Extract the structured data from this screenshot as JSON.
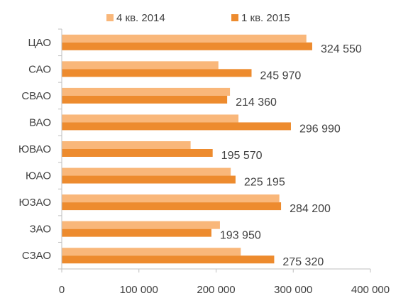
{
  "chart_data": {
    "type": "bar",
    "orientation": "horizontal",
    "categories": [
      "ЦАО",
      "САО",
      "СВАО",
      "ВАО",
      "ЮВАО",
      "ЮАО",
      "ЮЗАО",
      "ЗАО",
      "СЗАО"
    ],
    "series": [
      {
        "name": "4 кв. 2014",
        "color": "#F9B77A",
        "values": [
          317000,
          203000,
          218000,
          229000,
          167000,
          219000,
          282000,
          205000,
          232000
        ]
      },
      {
        "name": "1 кв. 2015",
        "color": "#ED8B2E",
        "values": [
          324550,
          245970,
          214360,
          296990,
          195570,
          225195,
          284200,
          193950,
          275320
        ]
      }
    ],
    "data_labels": [
      "324 550",
      "245 970",
      "214 360",
      "296 990",
      "195 570",
      "225 195",
      "284 200",
      "193 950",
      "275 320"
    ],
    "x_ticks": [
      "0",
      "100 000",
      "200 000",
      "300 000",
      "400 000"
    ],
    "xlim": [
      0,
      400000
    ],
    "legend_position": "top",
    "grid": false
  }
}
